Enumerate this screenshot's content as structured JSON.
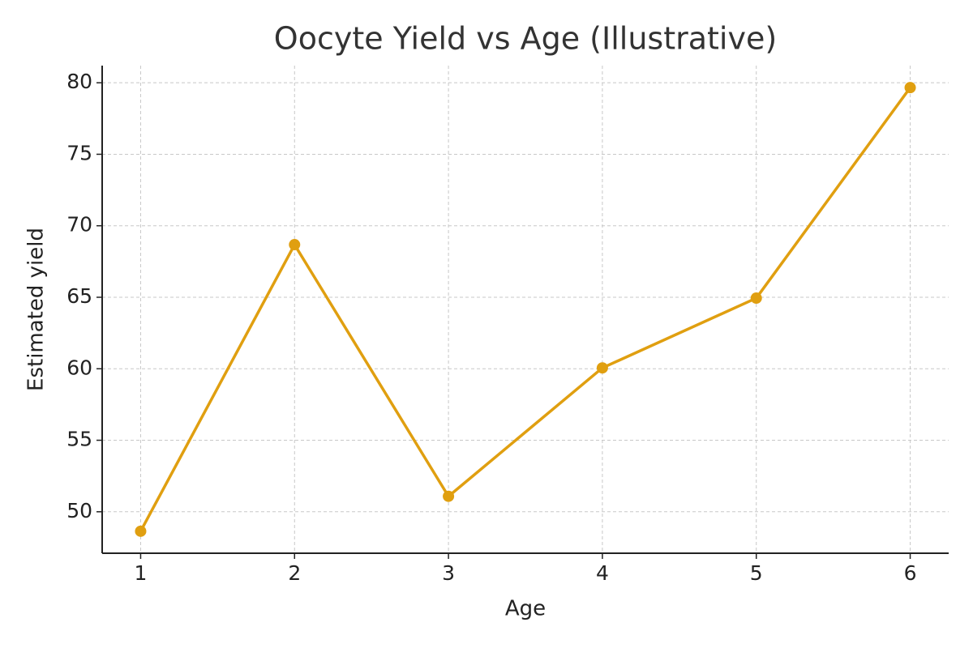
{
  "chart_data": {
    "type": "line",
    "title": "Oocyte Yield vs Age (Illustrative)",
    "x_label": "Age",
    "y_label": "Estimated yield",
    "x": [
      1,
      2,
      3,
      4,
      5,
      6
    ],
    "series": [
      {
        "name": "Estimated yield",
        "color": "#e09f10",
        "values": [
          48.64,
          68.68,
          51.08,
          60.06,
          64.94,
          79.66
        ]
      }
    ],
    "xlim": [
      0.75,
      6.25
    ],
    "xticks": [
      1,
      2,
      3,
      4,
      5,
      6
    ],
    "ylim": [
      47.1,
      81.2
    ],
    "yticks": [
      50,
      55,
      60,
      65,
      70,
      75,
      80
    ],
    "grid": true
  }
}
